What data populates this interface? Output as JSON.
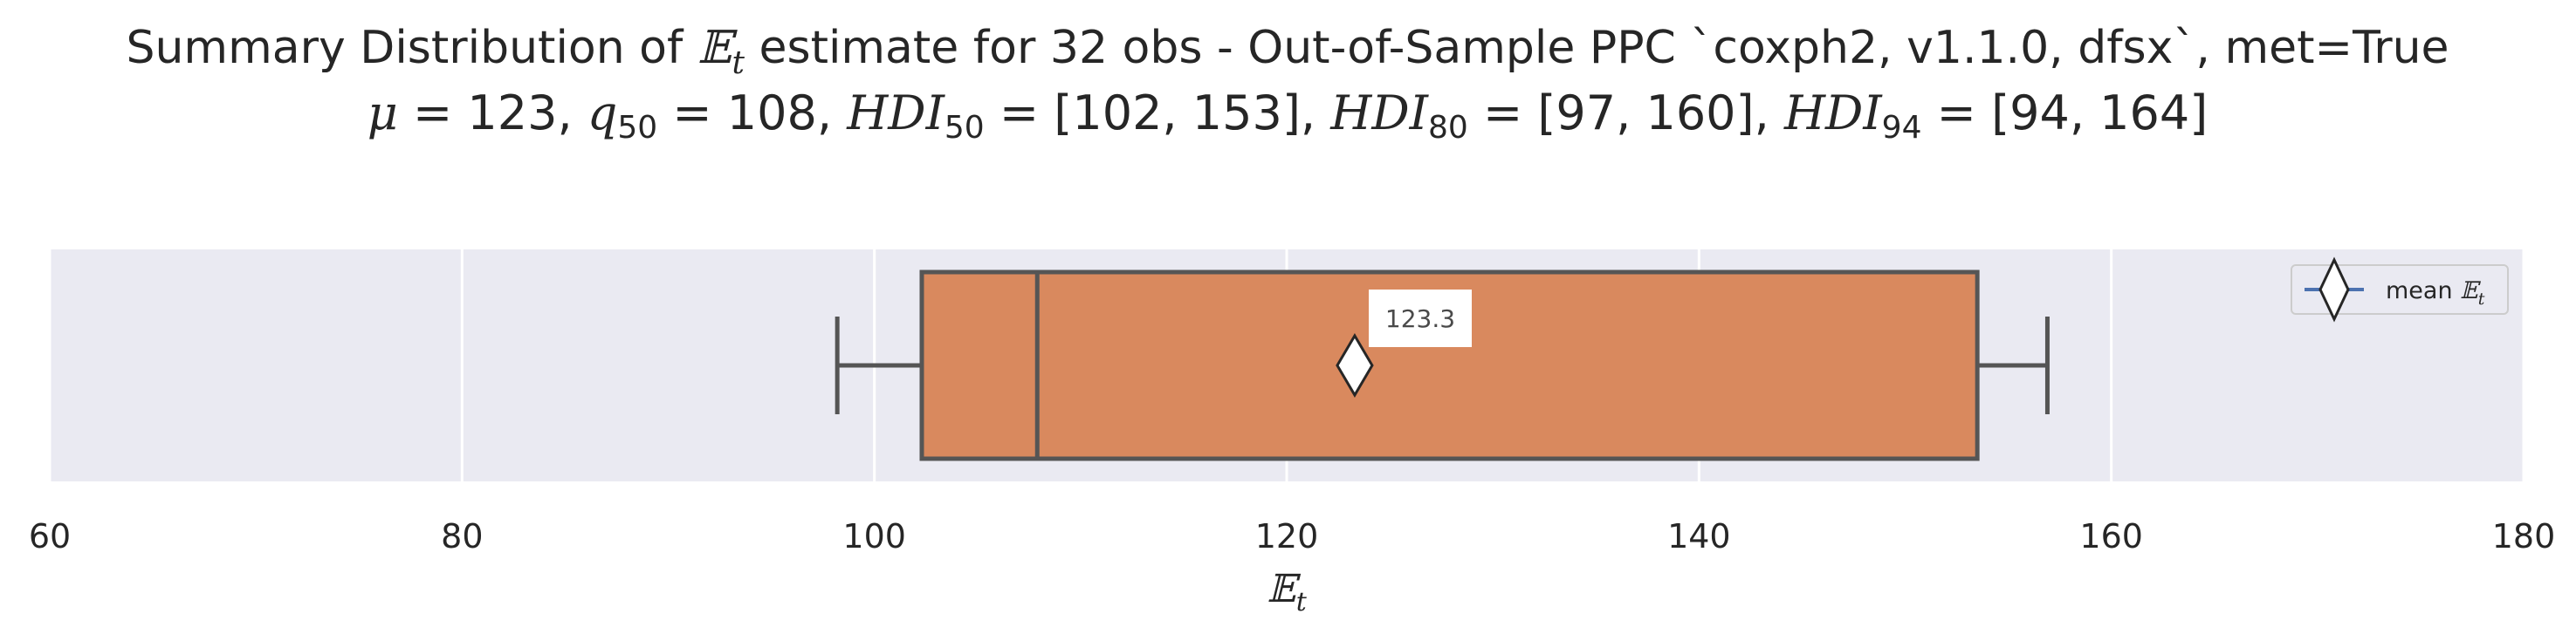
{
  "chart_data": {
    "type": "box",
    "title": {
      "prefix": "Summary Distribution of ",
      "var_symbol": "𝔼",
      "var_sub": "t",
      "suffix": " estimate for 32 obs - Out-of-Sample PPC `coxph2, v1.1.0, dfsx`, met=True"
    },
    "subtitle": {
      "mu_label": "μ",
      "mu": "123",
      "q_label": "q",
      "q_sub": "50",
      "q50": "108",
      "hdi_label": "HDI",
      "hdi50_sub": "50",
      "hdi50": "[102, 153]",
      "hdi80_sub": "80",
      "hdi80": "[97, 160]",
      "hdi94_sub": "94",
      "hdi94": "[94, 164]"
    },
    "xlabel": {
      "symbol": "𝔼",
      "sub": "t"
    },
    "xlim": [
      60,
      180
    ],
    "xticks": [
      60,
      80,
      100,
      120,
      140,
      160,
      180
    ],
    "grid": true,
    "box": {
      "whisker_low": 98.2,
      "q1": 102.3,
      "median": 107.9,
      "q3": 153.5,
      "whisker_high": 156.9,
      "mean": 123.3,
      "mean_label": "123.3"
    },
    "legend": {
      "label_prefix": "mean ",
      "symbol": "𝔼",
      "sub": "t",
      "placement": "top-right"
    },
    "colors": {
      "box_fill": "#d9895e",
      "box_edge": "#555555",
      "plot_bg": "#eaeaf2",
      "grid": "#ffffff",
      "mean_marker_fill": "#ffffff",
      "mean_marker_edge": "#262626",
      "legend_line": "#4c72b0"
    }
  }
}
